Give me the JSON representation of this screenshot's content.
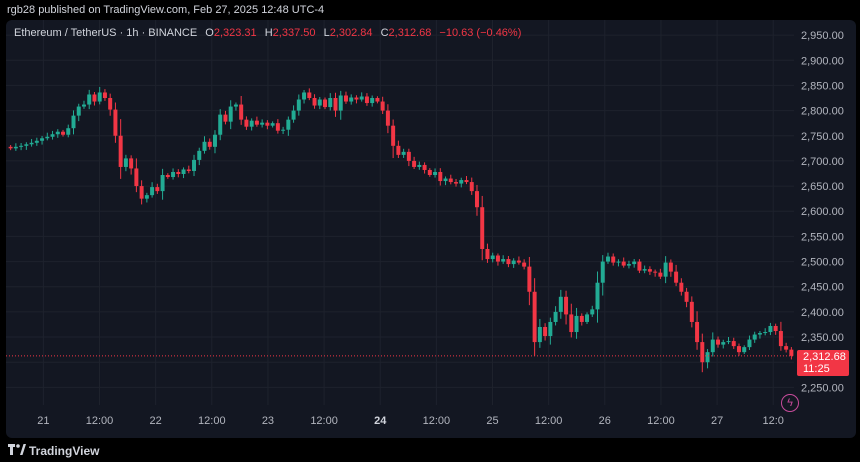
{
  "header": {
    "published": "rgb28 published on TradingView.com, Feb 27, 2025 12:48 UTC-4"
  },
  "legend": {
    "symbol": "Ethereum / TetherUS · 1h · BINANCE",
    "o_label": "O",
    "o": "2,323.31",
    "h_label": "H",
    "h": "2,337.50",
    "l_label": "L",
    "l": "2,302.84",
    "c_label": "C",
    "c": "2,312.68",
    "change": "−10.63 (−0.46%)"
  },
  "last_price": {
    "price": "2,312.68",
    "countdown": "11:25"
  },
  "footer": {
    "brand": "TradingView"
  },
  "colors": {
    "up": "#22ab94",
    "down": "#f23645",
    "background": "#131722",
    "grid": "#1e222d",
    "text": "#b2b5be"
  },
  "chart_data": {
    "type": "candlestick",
    "y_ticks": [
      "2,950.00",
      "2,900.00",
      "2,850.00",
      "2,800.00",
      "2,750.00",
      "2,700.00",
      "2,650.00",
      "2,600.00",
      "2,550.00",
      "2,500.00",
      "2,450.00",
      "2,400.00",
      "2,350.00",
      "2,300.00",
      "2,250.00"
    ],
    "y_tick_values": [
      2950,
      2900,
      2850,
      2800,
      2750,
      2700,
      2650,
      2600,
      2550,
      2500,
      2450,
      2400,
      2350,
      2300,
      2250
    ],
    "ylim": [
      2215,
      2980
    ],
    "x_ticks": [
      "21",
      "12:00",
      "22",
      "12:00",
      "23",
      "12:00",
      "24",
      "12:00",
      "25",
      "12:00",
      "26",
      "12:00",
      "27",
      "12:0"
    ],
    "x_tick_positions": [
      7,
      19,
      31,
      43,
      55,
      67,
      79,
      91,
      103,
      115,
      127,
      139,
      151,
      163
    ],
    "last_price_value": 2312.68,
    "closes": [
      2725,
      2728,
      2730,
      2733,
      2736,
      2740,
      2745,
      2748,
      2753,
      2758,
      2752,
      2765,
      2790,
      2808,
      2812,
      2832,
      2818,
      2836,
      2825,
      2802,
      2750,
      2688,
      2705,
      2685,
      2650,
      2625,
      2632,
      2648,
      2640,
      2672,
      2668,
      2678,
      2674,
      2683,
      2680,
      2702,
      2720,
      2738,
      2728,
      2752,
      2792,
      2778,
      2808,
      2812,
      2782,
      2768,
      2780,
      2772,
      2776,
      2770,
      2775,
      2760,
      2762,
      2782,
      2800,
      2822,
      2836,
      2825,
      2810,
      2822,
      2807,
      2825,
      2800,
      2830,
      2818,
      2826,
      2822,
      2828,
      2815,
      2825,
      2818,
      2800,
      2770,
      2730,
      2712,
      2718,
      2700,
      2688,
      2692,
      2682,
      2672,
      2678,
      2660,
      2665,
      2658,
      2655,
      2662,
      2658,
      2640,
      2608,
      2525,
      2505,
      2512,
      2500,
      2505,
      2495,
      2502,
      2498,
      2490,
      2440,
      2340,
      2370,
      2352,
      2380,
      2400,
      2430,
      2395,
      2360,
      2392,
      2380,
      2395,
      2405,
      2458,
      2500,
      2510,
      2498,
      2500,
      2492,
      2495,
      2500,
      2482,
      2485,
      2480,
      2478,
      2470,
      2498,
      2480,
      2458,
      2440,
      2420,
      2380,
      2340,
      2300,
      2320,
      2345,
      2335,
      2340,
      2342,
      2332,
      2320,
      2330,
      2345,
      2355,
      2358,
      2360,
      2372,
      2362,
      2332,
      2325,
      2312.68
    ]
  }
}
